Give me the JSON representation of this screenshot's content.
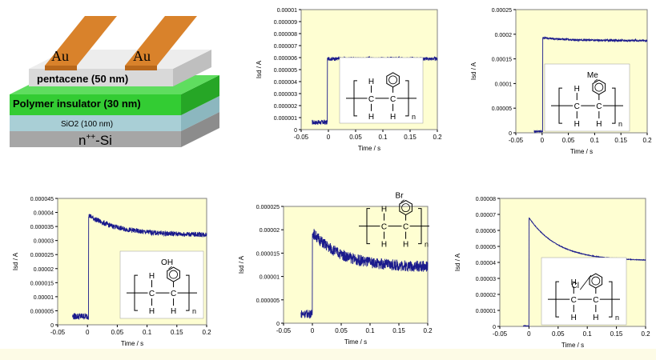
{
  "device": {
    "electrode_left": "Au",
    "electrode_right": "Au",
    "layer_pentacene": "pentacene (50 nm)",
    "layer_polymer": "Polymer insulator (30 nm)",
    "layer_sio2": "SiO2 (100 nm)",
    "layer_substrate_main": "n",
    "layer_substrate_sup": "++",
    "layer_substrate_tail": "-Si",
    "colors": {
      "electrode": "#d9822b",
      "pentacene": "#d9d9d9",
      "polymer": "#33cc33",
      "sio2": "#a9cfd6",
      "substrate": "#a6a6a6"
    }
  },
  "colors": {
    "plot_bg": "#fefed2",
    "trace": "#1a1a8c",
    "axis": "#000000"
  },
  "chart_data": [
    {
      "id": "c1",
      "type": "line",
      "xlabel": "Time / s",
      "ylabel": "Isd / A",
      "xlim": [
        -0.05,
        0.2
      ],
      "ylim": [
        0,
        1e-05
      ],
      "xticks": [
        "-0.05",
        "0",
        "0.05",
        "0.1",
        "0.15",
        "0.2"
      ],
      "yticks": [
        "0",
        "0.000001",
        "0.000002",
        "0.000003",
        "0.000004",
        "0.000005",
        "0.000006",
        "0.000007",
        "0.000008",
        "0.000009",
        "0.00001"
      ],
      "trace": {
        "x_start": -0.03,
        "x_step": 0.0,
        "off_level": 6e-07,
        "on_level": 5.9e-06,
        "step_at": -0.002,
        "decay": 0,
        "noise_off": 2e-07,
        "noise_on": 1.5e-07
      },
      "structure": {
        "substituent": "",
        "n": "n",
        "h_labels": [
          "H",
          "H",
          "H"
        ],
        "c_labels": [
          "C",
          "C"
        ]
      }
    },
    {
      "id": "c2",
      "type": "line",
      "xlabel": "Time / s",
      "ylabel": "Isd / A",
      "xlim": [
        -0.05,
        0.2
      ],
      "ylim": [
        0,
        0.00025
      ],
      "xticks": [
        "-0.05",
        "0",
        "0.05",
        "0.1",
        "0.15",
        "0.2"
      ],
      "yticks": [
        "0",
        "0.00005",
        "0.0001",
        "0.00015",
        "0.0002",
        "0.00025"
      ],
      "trace": {
        "x_start": -0.015,
        "off_level": 3e-06,
        "on_level": 0.000193,
        "step_at": 0.001,
        "decay": 6e-06,
        "noise_off": 2e-06,
        "noise_on": 2e-06
      },
      "structure": {
        "substituent": "Me",
        "n": "n",
        "h_labels": [
          "H",
          "H",
          "H"
        ],
        "c_labels": [
          "C",
          "C"
        ]
      }
    },
    {
      "id": "c3",
      "type": "line",
      "xlabel": "Time / s",
      "ylabel": "Isd / A",
      "xlim": [
        -0.05,
        0.2
      ],
      "ylim": [
        0,
        4.5e-05
      ],
      "xticks": [
        "-0.05",
        "0",
        "0.05",
        "0.1",
        "0.15",
        "0.2"
      ],
      "yticks": [
        "0",
        "0.000005",
        "0.00001",
        "0.000015",
        "0.00002",
        "0.000025",
        "0.00003",
        "0.000035",
        "0.00004",
        "0.000045"
      ],
      "trace": {
        "x_start": -0.025,
        "off_level": 3e-06,
        "on_level": 3.9e-05,
        "step_at": 0.002,
        "decay": 7e-06,
        "noise_off": 1.2e-06,
        "noise_on": 9e-07
      },
      "structure": {
        "substituent": "OH",
        "n": "n",
        "h_labels": [
          "H",
          "H",
          "H"
        ],
        "c_labels": [
          "C",
          "C"
        ]
      }
    },
    {
      "id": "c4",
      "type": "line",
      "xlabel": "Time / s",
      "ylabel": "Isd / A",
      "xlim": [
        -0.05,
        0.2
      ],
      "ylim": [
        0,
        2.5e-05
      ],
      "xticks": [
        "-0.05",
        "0",
        "0.05",
        "0.1",
        "0.15",
        "0.2"
      ],
      "yticks": [
        "0",
        "0.000005",
        "0.00001",
        "0.000015",
        "0.00002",
        "0.000025"
      ],
      "trace": {
        "x_start": -0.02,
        "off_level": 2e-06,
        "on_level": 1.95e-05,
        "step_at": 0.0,
        "decay": 7.5e-06,
        "noise_off": 9e-07,
        "noise_on": 1.2e-06
      },
      "structure": {
        "substituent": "Br",
        "n": "n",
        "h_labels": [
          "H",
          "H",
          "H"
        ],
        "c_labels": [
          "C",
          "C"
        ]
      }
    },
    {
      "id": "c5",
      "type": "line",
      "xlabel": "Time / s",
      "ylabel": "Isd / A",
      "xlim": [
        -0.05,
        0.2
      ],
      "ylim": [
        0,
        8e-05
      ],
      "xticks": [
        "-0.05",
        "0",
        "0.05",
        "0.1",
        "0.15",
        "0.2"
      ],
      "yticks": [
        "0",
        "0.00001",
        "0.00002",
        "0.00003",
        "0.00004",
        "0.00005",
        "0.00006",
        "0.00007",
        "0.00008"
      ],
      "trace": {
        "x_start": -0.01,
        "off_level": 3e-07,
        "on_level": 6.8e-05,
        "step_at": 0.0,
        "decay": 2.7e-05,
        "noise_off": 2e-07,
        "noise_on": 2e-07
      },
      "structure": {
        "substituent": "Cl",
        "n": "n",
        "h_labels": [
          "H",
          "H",
          "H"
        ],
        "c_labels": [
          "C",
          "C"
        ]
      }
    }
  ]
}
